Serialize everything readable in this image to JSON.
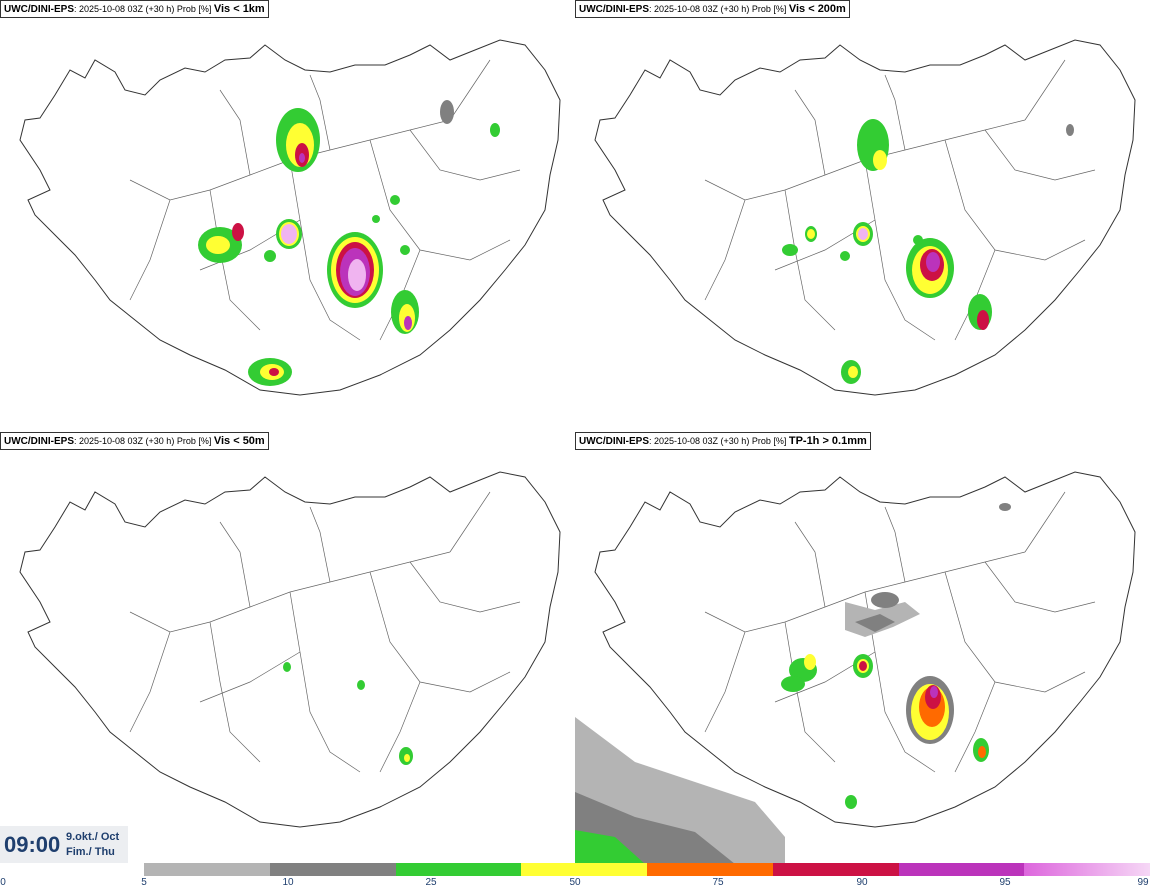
{
  "panels": [
    {
      "model": "UWC/DINI-EPS",
      "info": ": 2025-10-08 03Z (+30 h) Prob [%] ",
      "variable": "Vis < 1km"
    },
    {
      "model": "UWC/DINI-EPS",
      "info": ": 2025-10-08 03Z (+30 h) Prob [%] ",
      "variable": "Vis < 200m"
    },
    {
      "model": "UWC/DINI-EPS",
      "info": ": 2025-10-08 03Z (+30 h) Prob [%] ",
      "variable": "Vis < 50m"
    },
    {
      "model": "UWC/DINI-EPS",
      "info": ": 2025-10-08 03Z (+30 h) Prob [%] ",
      "variable": "TP-1h > 0.1mm"
    }
  ],
  "time": {
    "clock": "09:00",
    "date": "9.okt./ Oct",
    "day": "Fim./ Thu"
  },
  "colorbar": {
    "ticks": [
      "0",
      "5",
      "10",
      "25",
      "50",
      "75",
      "90",
      "95",
      "99"
    ],
    "colors": [
      "#b4b4b4",
      "#808080",
      "#33cc33",
      "#ffff33",
      "#ff6a00",
      "#cc1144",
      "#bb33bb",
      "#f0b4f0"
    ]
  },
  "colors": {
    "coast": "#333333",
    "boundary": "#666666"
  }
}
